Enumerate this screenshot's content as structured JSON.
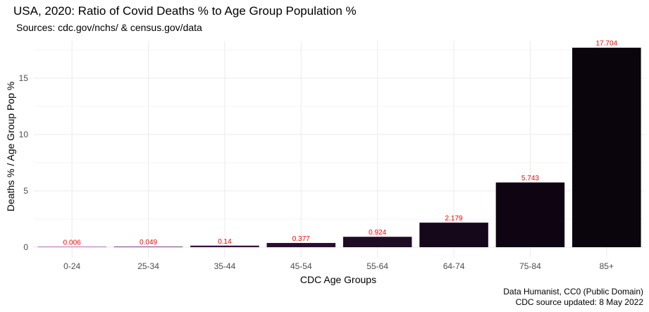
{
  "chart_data": {
    "type": "bar",
    "title": "USA, 2020: Ratio of Covid Deaths % to Age Group Population %",
    "subtitle": "Sources: cdc.gov/nchs/ & census.gov/data",
    "xlabel": "CDC Age Groups",
    "ylabel": "Deaths % / Age Group Pop %",
    "categories": [
      "0-24",
      "25-34",
      "35-44",
      "45-54",
      "55-64",
      "64-74",
      "75-84",
      "85+"
    ],
    "values": [
      0.006,
      0.049,
      0.14,
      0.377,
      0.924,
      2.179,
      5.743,
      17.704
    ],
    "data_labels": [
      "0.006",
      "0.049",
      "0.14",
      "0.377",
      "0.924",
      "2.179",
      "5.743",
      "17.704"
    ],
    "ylim": [
      0,
      18.6
    ],
    "yticks": [
      0,
      5,
      10,
      15
    ],
    "grid": true,
    "bar_colors": [
      "#8c1a8a",
      "#5e1466",
      "#3a1040",
      "#2a0e30",
      "#1e0b24",
      "#16081b",
      "#0f0512",
      "#0a040d"
    ],
    "data_label_color": "#ff0000",
    "gridline_color": "#ebebeb",
    "caption_lines": [
      "Data Humanist, CC0 (Public Domain)",
      "CDC source updated: 8 May 2022"
    ]
  }
}
